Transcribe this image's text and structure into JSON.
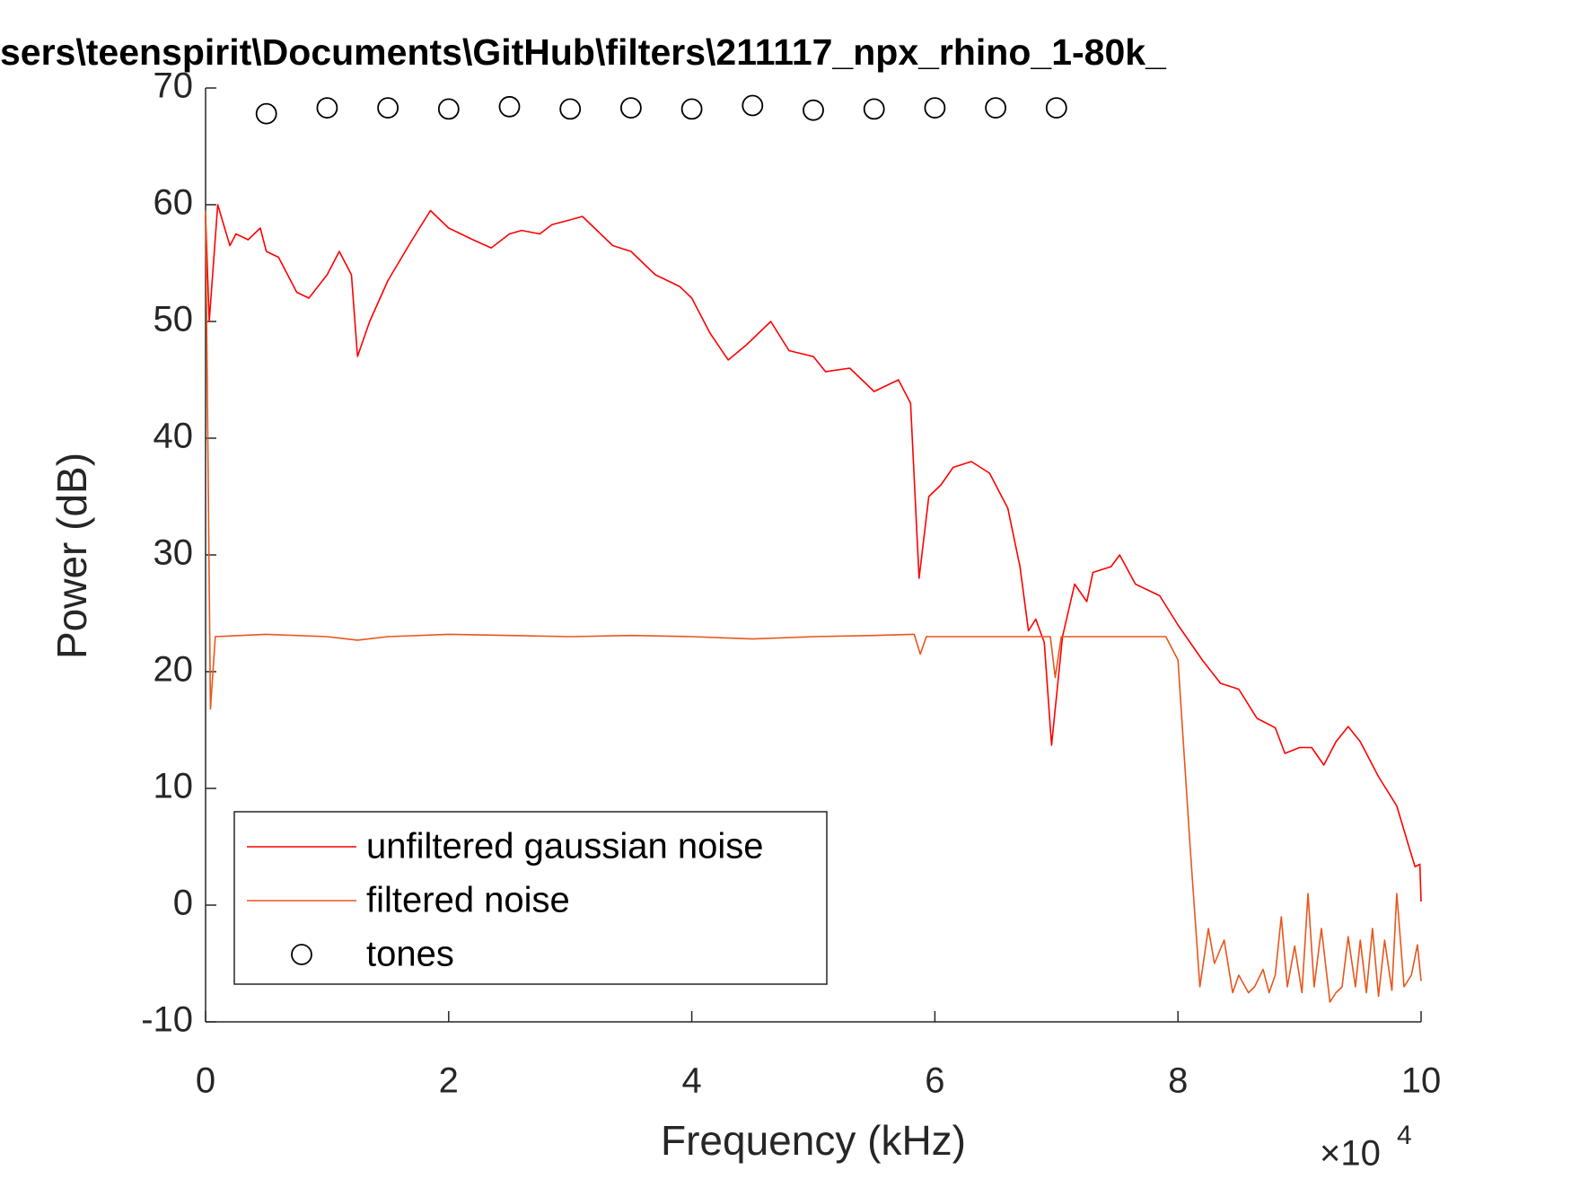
{
  "chart_data": {
    "type": "line",
    "title": "sers\\teenspirit\\Documents\\GitHub\\filters\\211117_npx_rhino_1-80k_",
    "x_label": "Frequency (kHz)",
    "y_label": "Power (dB)",
    "x_multiplier": {
      "base": "×10",
      "exponent": "4"
    },
    "xlim": [
      0,
      100000
    ],
    "xticks": [
      0,
      {
        "value": 20000,
        "label": "2"
      },
      {
        "value": 40000,
        "label": "4"
      },
      {
        "value": 60000,
        "label": "6"
      },
      {
        "value": 80000,
        "label": "8"
      },
      {
        "value": 100000,
        "label": "10"
      }
    ],
    "ylim": [
      -10,
      70
    ],
    "yticks": [
      -10,
      0,
      10,
      20,
      30,
      40,
      50,
      60,
      70
    ],
    "grid": false,
    "legend": "southwest",
    "series": [
      {
        "name": "unfiltered gaussian noise",
        "color": "#ff0000",
        "style": "line",
        "x": [
          0,
          300,
          1000,
          2000,
          2500,
          3500,
          4500,
          5000,
          6000,
          7500,
          8500,
          10000,
          11000,
          12000,
          12500,
          13500,
          15000,
          17000,
          18500,
          20000,
          22000,
          23500,
          25000,
          26000,
          27500,
          28500,
          30000,
          31000,
          32000,
          33500,
          35000,
          37000,
          39000,
          40000,
          41500,
          43000,
          44500,
          46500,
          48000,
          50000,
          51000,
          53000,
          55000,
          57000,
          58000,
          58700,
          59500,
          60500,
          61500,
          63000,
          64500,
          66000,
          67000,
          67700,
          68300,
          69000,
          69600,
          70500,
          71500,
          72500,
          73000,
          74500,
          75200,
          76500,
          77500,
          78500,
          80000,
          81000,
          82000,
          83500,
          85000,
          86500,
          88000,
          88800,
          90000,
          91000,
          92000,
          93000,
          94000,
          95000,
          96500,
          98000,
          99000,
          99500,
          99900,
          100000
        ],
        "values": [
          59,
          50,
          60,
          56.5,
          57.5,
          57,
          58,
          56,
          55.5,
          52.5,
          52,
          54,
          56,
          54,
          47,
          50,
          53.5,
          57,
          59.5,
          58,
          57,
          56.3,
          57.5,
          57.8,
          57.5,
          58.3,
          58.7,
          59,
          58,
          56.5,
          56,
          54,
          53,
          52,
          49,
          46.7,
          48,
          50,
          47.5,
          47,
          45.7,
          46,
          44,
          45,
          43,
          28,
          35,
          36,
          37.5,
          38,
          37,
          34,
          29,
          23.5,
          24.5,
          22.5,
          13.7,
          23,
          27.5,
          26,
          28.5,
          29,
          30,
          27.5,
          27,
          26.5,
          24,
          22.5,
          21,
          19,
          18.5,
          16,
          15.2,
          13,
          13.5,
          13.5,
          12,
          14,
          15.3,
          14,
          11,
          8.5,
          5,
          3.3,
          3.5,
          0.3
        ]
      },
      {
        "name": "filtered noise",
        "color": "#e8561c",
        "style": "line",
        "x": [
          0,
          400,
          800,
          5000,
          10000,
          12500,
          15000,
          20000,
          25000,
          30000,
          35000,
          40000,
          45000,
          50000,
          55000,
          58300,
          58800,
          59300,
          65000,
          69500,
          69900,
          70400,
          75000,
          79000,
          80000,
          81000,
          81800,
          82500,
          83000,
          83800,
          84500,
          85000,
          85800,
          86300,
          87000,
          87500,
          88000,
          88500,
          89000,
          89600,
          90200,
          90700,
          91200,
          91800,
          92500,
          93000,
          93500,
          94000,
          94600,
          95000,
          95500,
          96000,
          96500,
          97000,
          97600,
          98000,
          98600,
          99200,
          99700,
          100000
        ],
        "values": [
          59.5,
          16.8,
          23,
          23.2,
          23,
          22.7,
          23,
          23.2,
          23.1,
          23,
          23.1,
          23,
          22.8,
          23,
          23.1,
          23.2,
          21.5,
          23,
          23,
          23,
          19.5,
          23,
          23,
          23,
          21,
          5,
          -7,
          -2,
          -5,
          -3,
          -7.5,
          -6,
          -7.5,
          -7,
          -5.5,
          -7.5,
          -6,
          -1,
          -7,
          -3.5,
          -7.5,
          1,
          -7,
          -2,
          -8.3,
          -7.5,
          -7,
          -2.7,
          -7,
          -3,
          -7.5,
          -2,
          -7.8,
          -3,
          -7.3,
          1,
          -7,
          -6,
          -3.4,
          -6.5
        ]
      },
      {
        "name": "tones",
        "color": "#000000",
        "style": "marker",
        "x": [
          5000,
          10000,
          15000,
          20000,
          25000,
          30000,
          35000,
          40000,
          45000,
          50000,
          55000,
          60000,
          65000,
          70000
        ],
        "values": [
          67.8,
          68.3,
          68.3,
          68.2,
          68.4,
          68.2,
          68.3,
          68.2,
          68.5,
          68.1,
          68.2,
          68.3,
          68.3,
          68.3
        ]
      }
    ]
  }
}
